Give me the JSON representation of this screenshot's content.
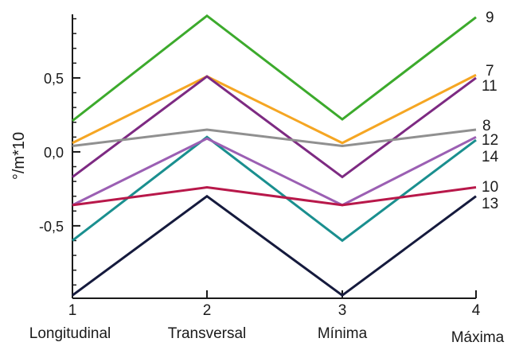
{
  "chart_data": {
    "type": "line",
    "ylabel": "°/m*10",
    "x_ticks": [
      "1",
      "2",
      "3",
      "4"
    ],
    "categories": [
      "Longitudinal",
      "Transversal",
      "Mínima",
      "Máxima"
    ],
    "y_ticks": [
      {
        "value": 0.5,
        "label": "0,5"
      },
      {
        "value": 0.0,
        "label": "0,0"
      },
      {
        "value": -0.5,
        "label": "-0,5"
      }
    ],
    "ylim": [
      -0.99,
      0.93
    ],
    "grid": false,
    "legend": "none",
    "series": [
      {
        "name": "9",
        "color": "#3caa2c",
        "values": [
          0.21,
          0.92,
          0.22,
          0.91
        ]
      },
      {
        "name": "7",
        "color": "#f5a623",
        "values": [
          0.06,
          0.51,
          0.06,
          0.52
        ]
      },
      {
        "name": "11",
        "color": "#7d2a82",
        "values": [
          -0.17,
          0.51,
          -0.17,
          0.5
        ]
      },
      {
        "name": "8",
        "color": "#909090",
        "values": [
          0.04,
          0.15,
          0.04,
          0.15
        ]
      },
      {
        "name": "12",
        "color": "#1a8f8f",
        "values": [
          -0.6,
          0.1,
          -0.6,
          0.08
        ]
      },
      {
        "name": "14",
        "color": "#9b5fb3",
        "values": [
          -0.36,
          0.09,
          -0.36,
          0.1
        ]
      },
      {
        "name": "10",
        "color": "#b8184a",
        "values": [
          -0.36,
          -0.24,
          -0.36,
          -0.24
        ]
      },
      {
        "name": "13",
        "color": "#151a3d",
        "values": [
          -0.97,
          -0.3,
          -0.97,
          -0.3
        ]
      }
    ]
  }
}
